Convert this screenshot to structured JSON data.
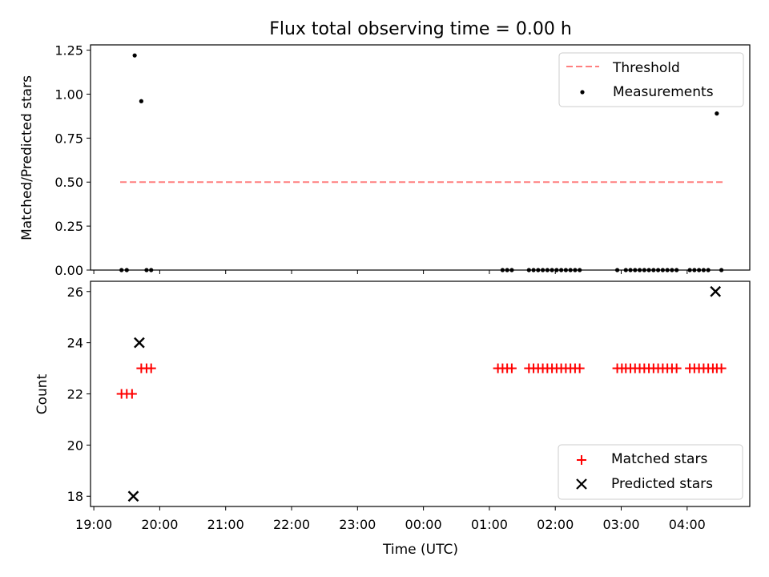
{
  "chart_data": [
    {
      "type": "scatter",
      "title": "Flux total observing time = 0.00 h",
      "xlabel": "",
      "ylabel": "Matched/Predicted stars",
      "xlim": [
        18.95,
        28.95
      ],
      "ylim": [
        0.0,
        1.28
      ],
      "yticks": [
        "0.00",
        "0.25",
        "0.50",
        "0.75",
        "1.00",
        "1.25"
      ],
      "ytick_values": [
        0.0,
        0.25,
        0.5,
        0.75,
        1.0,
        1.25
      ],
      "legend_position": "top-right",
      "threshold": {
        "name": "Threshold",
        "y": 0.5,
        "x_start": 19.4,
        "x_end": 28.55,
        "color": "#ff7f7f",
        "style": "dashed"
      },
      "series": [
        {
          "name": "Measurements",
          "color": "#000000",
          "marker": "dot",
          "x": [
            19.42,
            19.5,
            19.62,
            19.72,
            19.8,
            19.87,
            25.2,
            25.27,
            25.34,
            25.6,
            25.67,
            25.74,
            25.81,
            25.88,
            25.95,
            26.02,
            26.09,
            26.16,
            26.23,
            26.3,
            26.37,
            26.94,
            27.07,
            27.14,
            27.21,
            27.28,
            27.35,
            27.42,
            27.49,
            27.56,
            27.63,
            27.7,
            27.77,
            27.84,
            28.04,
            28.11,
            28.18,
            28.25,
            28.32,
            28.45,
            28.52
          ],
          "y": [
            0,
            0,
            1.22,
            0.96,
            0,
            0,
            0,
            0,
            0,
            0,
            0,
            0,
            0,
            0,
            0,
            0,
            0,
            0,
            0,
            0,
            0,
            0,
            0,
            0,
            0,
            0,
            0,
            0,
            0,
            0,
            0,
            0,
            0,
            0,
            0,
            0,
            0,
            0,
            0,
            0.89,
            0
          ]
        }
      ]
    },
    {
      "type": "scatter",
      "title": "",
      "xlabel": "Time (UTC)",
      "ylabel": "Count",
      "xlim": [
        18.95,
        28.95
      ],
      "ylim": [
        17.6,
        26.4
      ],
      "xticks": [
        "19:00",
        "20:00",
        "21:00",
        "22:00",
        "23:00",
        "00:00",
        "01:00",
        "02:00",
        "03:00",
        "04:00"
      ],
      "xtick_values": [
        19,
        20,
        21,
        22,
        23,
        24,
        25,
        26,
        27,
        28
      ],
      "yticks": [
        "18",
        "20",
        "22",
        "24",
        "26"
      ],
      "ytick_values": [
        18,
        20,
        22,
        24,
        26
      ],
      "legend_position": "bottom-right",
      "series": [
        {
          "name": "Matched stars",
          "color": "#ff0000",
          "marker": "plus",
          "x": [
            19.42,
            19.5,
            19.58,
            19.72,
            19.8,
            19.87,
            25.13,
            25.2,
            25.27,
            25.34,
            25.6,
            25.67,
            25.74,
            25.81,
            25.88,
            25.95,
            26.02,
            26.09,
            26.16,
            26.23,
            26.3,
            26.37,
            26.94,
            27.01,
            27.07,
            27.14,
            27.21,
            27.28,
            27.35,
            27.42,
            27.49,
            27.56,
            27.63,
            27.7,
            27.77,
            27.84,
            28.04,
            28.11,
            28.18,
            28.25,
            28.32,
            28.39,
            28.45,
            28.52
          ],
          "y": [
            22,
            22,
            22,
            23,
            23,
            23,
            23,
            23,
            23,
            23,
            23,
            23,
            23,
            23,
            23,
            23,
            23,
            23,
            23,
            23,
            23,
            23,
            23,
            23,
            23,
            23,
            23,
            23,
            23,
            23,
            23,
            23,
            23,
            23,
            23,
            23,
            23,
            23,
            23,
            23,
            23,
            23,
            23,
            23
          ]
        },
        {
          "name": "Predicted stars",
          "color": "#000000",
          "marker": "x",
          "x": [
            19.6,
            19.69,
            28.43
          ],
          "y": [
            18,
            24,
            26
          ]
        }
      ]
    }
  ]
}
